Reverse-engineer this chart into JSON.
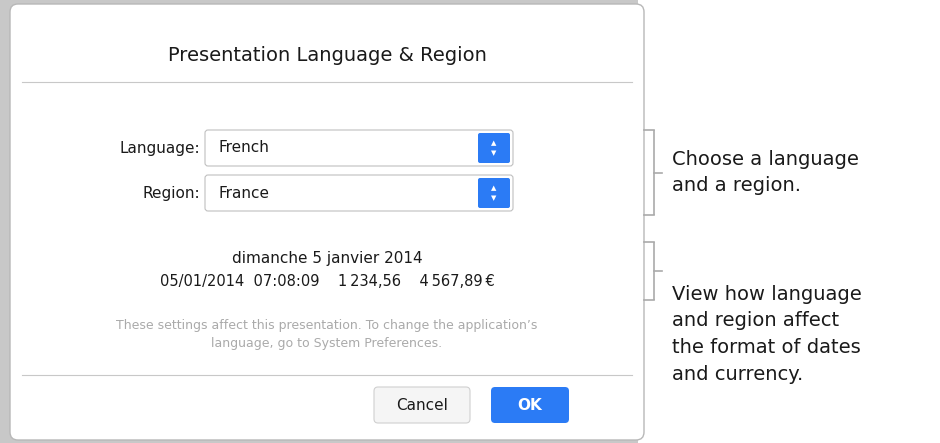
{
  "bg_color": "#c8c8c8",
  "dialog_bg": "#ffffff",
  "right_bg": "#ffffff",
  "title": "Presentation Language & Region",
  "title_fontsize": 14,
  "title_color": "#1a1a1a",
  "separator_color": "#c8c8c8",
  "language_label": "Language:",
  "language_value": "French",
  "region_label": "Region:",
  "region_value": "France",
  "dropdown_border": "#c0c0c0",
  "dropdown_bg": "#ffffff",
  "dropdown_btn_color": "#2b7bf5",
  "format_date": "dimanche 5 janvier 2014",
  "format_line2": "05/01/2014  07:08:09    1 234,56    4 567,89 €",
  "note_text": "These settings affect this presentation. To change the application’s\nlanguage, go to System Preferences.",
  "note_color": "#aaaaaa",
  "note_fontsize": 9,
  "cancel_label": "Cancel",
  "ok_label": "OK",
  "ok_bg": "#2b7bf5",
  "ok_text_color": "#ffffff",
  "callout1_text": "Choose a language\nand a region.",
  "callout2_text": "View how language\nand region affect\nthe format of dates\nand currency.",
  "callout_fontsize": 14,
  "callout_color": "#1a1a1a",
  "bracket_color": "#aaaaaa"
}
